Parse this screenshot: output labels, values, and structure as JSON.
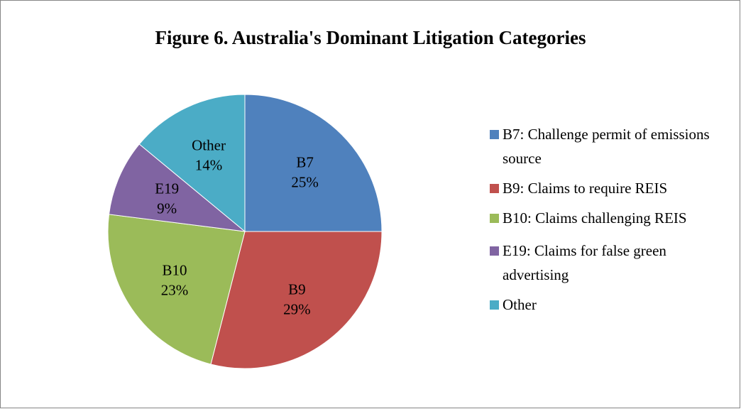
{
  "chart_data": {
    "type": "pie",
    "title": "Figure 6. Australia's Dominant Litigation Categories",
    "categories": [
      "B7: Challenge permit of emissions source",
      "B9: Claims to require REIS",
      "B10: Claims challenging REIS",
      "E19: Claims for false green advertising",
      "Other"
    ],
    "labels": [
      "B7",
      "B9",
      "B10",
      "E19",
      "Other"
    ],
    "values": [
      25,
      29,
      23,
      9,
      14
    ],
    "value_labels": [
      "25%",
      "29%",
      "23%",
      "9%",
      "14%"
    ],
    "colors": [
      "#4f81bd",
      "#c0504d",
      "#9bbb59",
      "#8064a2",
      "#4bacc6"
    ],
    "legend": "right"
  }
}
